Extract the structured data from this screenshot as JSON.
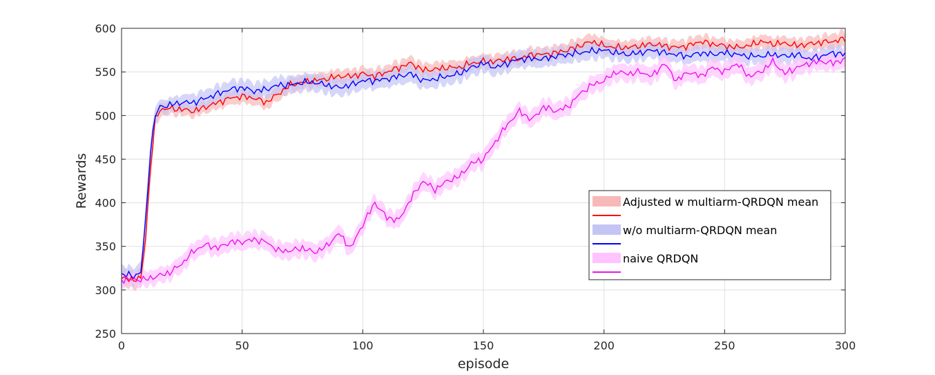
{
  "chart_data": {
    "type": "line",
    "title": "",
    "xlabel": "episode",
    "ylabel": "Rewards",
    "xlim": [
      0,
      300
    ],
    "ylim": [
      250,
      600
    ],
    "xticks": [
      0,
      50,
      100,
      150,
      200,
      250,
      300
    ],
    "yticks": [
      250,
      300,
      350,
      400,
      450,
      500,
      550,
      600
    ],
    "grid": true,
    "legend_position": "right",
    "legend": [
      "Adjusted w multiarm-QRDQN mean",
      "w/o multiarm-QRDQN mean",
      "naive QRDQN"
    ],
    "series": [
      {
        "name": "Adjusted w multiarm-QRDQN mean",
        "color": "#ff0000",
        "band_color": "#f7b8b8",
        "x": [
          0,
          5,
          8,
          10,
          12,
          14,
          16,
          20,
          25,
          30,
          35,
          40,
          45,
          50,
          55,
          60,
          65,
          70,
          75,
          80,
          85,
          90,
          95,
          100,
          105,
          110,
          115,
          120,
          125,
          130,
          135,
          140,
          145,
          150,
          155,
          160,
          165,
          170,
          175,
          180,
          185,
          190,
          195,
          200,
          205,
          210,
          215,
          220,
          225,
          230,
          235,
          240,
          245,
          250,
          255,
          260,
          265,
          270,
          275,
          280,
          285,
          290,
          295,
          300
        ],
        "y": [
          313,
          312,
          313,
          360,
          440,
          495,
          507,
          508,
          507,
          505,
          510,
          515,
          520,
          522,
          520,
          515,
          525,
          535,
          538,
          540,
          542,
          545,
          545,
          548,
          545,
          550,
          555,
          560,
          552,
          553,
          555,
          555,
          560,
          562,
          562,
          565,
          565,
          570,
          570,
          572,
          575,
          580,
          585,
          580,
          578,
          578,
          580,
          582,
          580,
          578,
          580,
          585,
          582,
          580,
          578,
          580,
          585,
          582,
          583,
          580,
          582,
          584,
          585,
          588
        ],
        "band": [
          10,
          10,
          12,
          15,
          15,
          10,
          8,
          7,
          7,
          7,
          7,
          8,
          8,
          8,
          8,
          8,
          8,
          8,
          8,
          8,
          8,
          8,
          8,
          8,
          8,
          8,
          8,
          8,
          8,
          8,
          8,
          8,
          8,
          8,
          8,
          8,
          8,
          8,
          8,
          8,
          9,
          9,
          9,
          9,
          8,
          8,
          8,
          8,
          8,
          8,
          8,
          8,
          8,
          8,
          8,
          8,
          8,
          8,
          8,
          8,
          8,
          8,
          9,
          9
        ]
      },
      {
        "name": "w/o multiarm-QRDQN mean",
        "color": "#0000ff",
        "band_color": "#c5c5f5",
        "x": [
          0,
          5,
          8,
          10,
          12,
          14,
          16,
          20,
          25,
          30,
          35,
          40,
          45,
          50,
          55,
          60,
          65,
          70,
          75,
          80,
          85,
          90,
          95,
          100,
          105,
          110,
          115,
          120,
          125,
          130,
          135,
          140,
          145,
          150,
          155,
          160,
          165,
          170,
          175,
          180,
          185,
          190,
          195,
          200,
          205,
          210,
          215,
          220,
          225,
          230,
          235,
          240,
          245,
          250,
          255,
          260,
          265,
          270,
          275,
          280,
          285,
          290,
          295,
          300
        ],
        "y": [
          318,
          316,
          320,
          380,
          460,
          500,
          510,
          512,
          515,
          515,
          520,
          525,
          530,
          532,
          528,
          530,
          535,
          535,
          538,
          538,
          535,
          532,
          535,
          540,
          540,
          542,
          545,
          548,
          540,
          542,
          545,
          548,
          555,
          560,
          555,
          560,
          565,
          565,
          565,
          568,
          570,
          572,
          574,
          575,
          572,
          570,
          572,
          575,
          572,
          570,
          568,
          572,
          570,
          572,
          570,
          568,
          568,
          570,
          568,
          570,
          565,
          568,
          572,
          570
        ],
        "band": [
          10,
          10,
          12,
          15,
          15,
          10,
          8,
          8,
          9,
          10,
          10,
          10,
          10,
          10,
          10,
          10,
          10,
          10,
          10,
          10,
          10,
          10,
          10,
          10,
          10,
          10,
          10,
          10,
          10,
          10,
          10,
          10,
          10,
          10,
          10,
          10,
          10,
          10,
          10,
          10,
          10,
          10,
          10,
          9,
          9,
          9,
          9,
          9,
          9,
          9,
          9,
          9,
          9,
          9,
          9,
          9,
          9,
          9,
          9,
          9,
          9,
          9,
          9,
          9
        ]
      },
      {
        "name": "naive QRDQN",
        "color": "#ee11ee",
        "band_color": "#ffc4ff",
        "x": [
          0,
          5,
          10,
          15,
          20,
          25,
          30,
          35,
          40,
          45,
          50,
          55,
          60,
          65,
          70,
          75,
          80,
          85,
          90,
          95,
          100,
          105,
          110,
          115,
          120,
          125,
          130,
          135,
          140,
          145,
          150,
          155,
          160,
          165,
          170,
          175,
          180,
          185,
          190,
          195,
          200,
          205,
          210,
          215,
          220,
          225,
          230,
          235,
          240,
          245,
          250,
          255,
          260,
          265,
          270,
          275,
          280,
          285,
          290,
          295,
          300
        ],
        "y": [
          312,
          312,
          312,
          316,
          320,
          330,
          345,
          352,
          348,
          355,
          355,
          358,
          355,
          345,
          345,
          348,
          343,
          350,
          365,
          348,
          375,
          400,
          383,
          380,
          405,
          425,
          415,
          425,
          430,
          445,
          450,
          470,
          490,
          505,
          495,
          510,
          505,
          510,
          525,
          535,
          540,
          550,
          548,
          550,
          545,
          560,
          540,
          550,
          545,
          555,
          550,
          560,
          545,
          550,
          562,
          548,
          555,
          560,
          562,
          560,
          565
        ],
        "band": [
          8,
          8,
          9,
          9,
          9,
          10,
          10,
          10,
          10,
          10,
          10,
          10,
          10,
          10,
          10,
          10,
          10,
          10,
          10,
          10,
          10,
          10,
          10,
          10,
          10,
          10,
          10,
          10,
          10,
          10,
          10,
          10,
          10,
          10,
          10,
          10,
          10,
          10,
          10,
          10,
          10,
          10,
          10,
          10,
          10,
          10,
          10,
          10,
          10,
          10,
          10,
          10,
          10,
          10,
          10,
          10,
          10,
          10,
          10,
          10,
          10
        ]
      }
    ]
  }
}
